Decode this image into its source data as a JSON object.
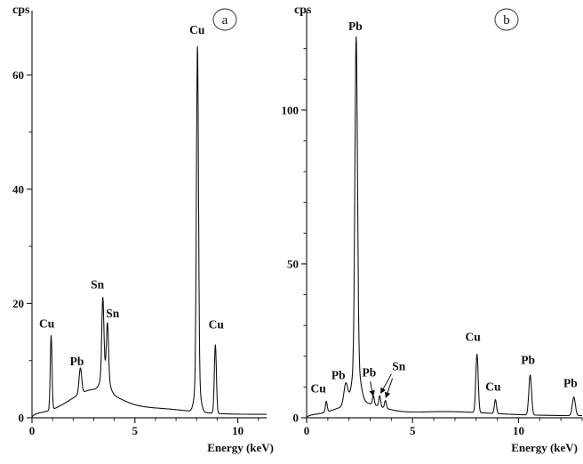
{
  "figure": {
    "description": "Two X-ray spectra panels",
    "panels": [
      "a",
      "b"
    ]
  },
  "colors": {
    "line": "#141414",
    "axis": "#222222",
    "text": "#111111",
    "circle_stroke": "#555555",
    "background": "#ffffff"
  },
  "chart_data": [
    {
      "type": "line",
      "panel_label": "a",
      "ylabel": "cps",
      "xlabel": "Energy (keV)",
      "xlim": [
        0,
        11.4
      ],
      "ylim": [
        0,
        70
      ],
      "xticks": [
        0,
        5,
        10
      ],
      "yticks": [
        0,
        20,
        40,
        60
      ],
      "x_minor_step": 1,
      "y_minor_step": 10,
      "baseline": {
        "level": 0.6,
        "onset": 0.12,
        "humps": [
          {
            "c": 3.0,
            "h": 4.2,
            "w": 1.6
          },
          {
            "c": 6.0,
            "h": 1.0,
            "w": 2.2
          },
          {
            "c": 3.55,
            "h": 4.0,
            "w": 0.25
          },
          {
            "c": 8.04,
            "h": 6.0,
            "w": 0.18
          }
        ]
      },
      "peaks": [
        {
          "element": "Cu",
          "energy_kev": 0.93,
          "height_cps": 13,
          "width_kev": 0.06
        },
        {
          "element": "Pb",
          "energy_kev": 2.35,
          "height_cps": 4.5,
          "width_kev": 0.09
        },
        {
          "element": "Sn",
          "energy_kev": 3.44,
          "height_cps": 13,
          "width_kev": 0.07
        },
        {
          "element": "Sn",
          "energy_kev": 3.67,
          "height_cps": 9,
          "width_kev": 0.07
        },
        {
          "element": "Cu",
          "energy_kev": 8.04,
          "height_cps": 58,
          "width_kev": 0.07
        },
        {
          "element": "Cu",
          "energy_kev": 8.91,
          "height_cps": 12,
          "width_kev": 0.07
        }
      ],
      "annotations": [
        {
          "text": "Cu",
          "x": 0.72,
          "y": 15.8
        },
        {
          "text": "Pb",
          "x": 2.18,
          "y": 9.2
        },
        {
          "text": "Sn",
          "x": 3.18,
          "y": 22.6
        },
        {
          "text": "Sn",
          "x": 3.92,
          "y": 17.6
        },
        {
          "text": "Cu",
          "x": 8.02,
          "y": 67.2
        },
        {
          "text": "Cu",
          "x": 8.95,
          "y": 15.6
        }
      ],
      "arrows": []
    },
    {
      "type": "line",
      "panel_label": "b",
      "ylabel": "cps",
      "xlabel": "Energy (keV)",
      "xlim": [
        0,
        13.0
      ],
      "ylim": [
        0,
        130
      ],
      "xticks": [
        0,
        5,
        10
      ],
      "yticks": [
        0,
        50,
        100
      ],
      "x_minor_step": 1,
      "y_minor_step": 10,
      "baseline": {
        "level": 0.7,
        "onset": 0.12,
        "humps": [
          {
            "c": 2.5,
            "h": 4.0,
            "w": 1.4
          },
          {
            "c": 6.5,
            "h": 1.3,
            "w": 3.0
          },
          {
            "c": 2.34,
            "h": 14,
            "w": 0.25
          }
        ]
      },
      "peaks": [
        {
          "element": "Cu",
          "energy_kev": 0.93,
          "height_cps": 3.5,
          "width_kev": 0.06
        },
        {
          "element": "Pb",
          "energy_kev": 1.85,
          "height_cps": 7,
          "width_kev": 0.13
        },
        {
          "element": "Pb",
          "energy_kev": 2.34,
          "height_cps": 105,
          "width_kev": 0.085
        },
        {
          "element": "Pb",
          "energy_kev": 3.15,
          "height_cps": 3,
          "width_kev": 0.06
        },
        {
          "element": "Sn",
          "energy_kev": 3.45,
          "height_cps": 3.5,
          "width_kev": 0.06
        },
        {
          "element": "Sn",
          "energy_kev": 3.72,
          "height_cps": 2.5,
          "width_kev": 0.06
        },
        {
          "element": "Cu",
          "energy_kev": 8.04,
          "height_cps": 19,
          "width_kev": 0.08
        },
        {
          "element": "Cu",
          "energy_kev": 8.91,
          "height_cps": 4.5,
          "width_kev": 0.07
        },
        {
          "element": "Pb",
          "energy_kev": 10.55,
          "height_cps": 13,
          "width_kev": 0.09
        },
        {
          "element": "Pb",
          "energy_kev": 12.61,
          "height_cps": 6,
          "width_kev": 0.1
        }
      ],
      "annotations": [
        {
          "text": "Cu",
          "x": 0.55,
          "y": 8.2
        },
        {
          "text": "Pb",
          "x": 1.5,
          "y": 12.5
        },
        {
          "text": "Pb",
          "x": 2.3,
          "y": 126
        },
        {
          "text": "Pb",
          "x": 2.95,
          "y": 13.5
        },
        {
          "text": "Sn",
          "x": 4.35,
          "y": 15.5
        },
        {
          "text": "Cu",
          "x": 7.85,
          "y": 25
        },
        {
          "text": "Cu",
          "x": 8.8,
          "y": 8.8
        },
        {
          "text": "Pb",
          "x": 10.45,
          "y": 17.5
        },
        {
          "text": "Pb",
          "x": 12.45,
          "y": 10
        }
      ],
      "arrows": [
        {
          "x1": 3.0,
          "y1": 11.8,
          "x2": 3.14,
          "y2": 7.2
        },
        {
          "x1": 4.0,
          "y1": 14.2,
          "x2": 3.5,
          "y2": 8.0
        },
        {
          "x1": 4.05,
          "y1": 12.8,
          "x2": 3.74,
          "y2": 6.6
        }
      ]
    }
  ]
}
